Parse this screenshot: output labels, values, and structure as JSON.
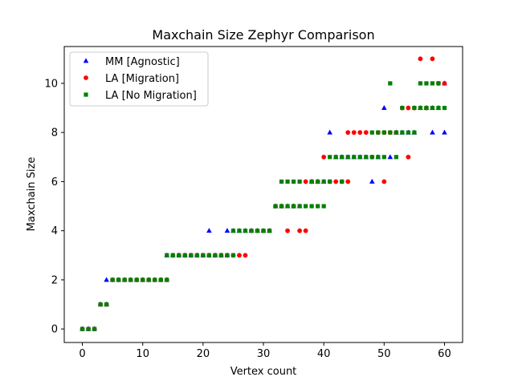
{
  "chart_data": {
    "type": "scatter",
    "title": "Maxchain Size Zephyr Comparison",
    "xlabel": "Vertex count",
    "ylabel": "Maxchain Size",
    "xlim": [
      -3,
      63
    ],
    "ylim": [
      -0.55,
      11.5
    ],
    "xticks": [
      0,
      10,
      20,
      30,
      40,
      50,
      60
    ],
    "yticks": [
      0,
      2,
      4,
      6,
      8,
      10
    ],
    "grid": false,
    "legend_position": "top-left",
    "series": [
      {
        "name": "MM [Agnostic]",
        "color": "#0000ff",
        "marker": "triangle",
        "points": [
          [
            0,
            0
          ],
          [
            1,
            0
          ],
          [
            2,
            0
          ],
          [
            3,
            1
          ],
          [
            4,
            1
          ],
          [
            4,
            2
          ],
          [
            5,
            2
          ],
          [
            6,
            2
          ],
          [
            7,
            2
          ],
          [
            8,
            2
          ],
          [
            9,
            2
          ],
          [
            10,
            2
          ],
          [
            11,
            2
          ],
          [
            12,
            2
          ],
          [
            13,
            2
          ],
          [
            14,
            2
          ],
          [
            14,
            3
          ],
          [
            15,
            3
          ],
          [
            16,
            3
          ],
          [
            17,
            3
          ],
          [
            18,
            3
          ],
          [
            19,
            3
          ],
          [
            20,
            3
          ],
          [
            21,
            3
          ],
          [
            21,
            4
          ],
          [
            22,
            3
          ],
          [
            23,
            3
          ],
          [
            24,
            3
          ],
          [
            24,
            4
          ],
          [
            25,
            4
          ],
          [
            26,
            4
          ],
          [
            27,
            4
          ],
          [
            28,
            4
          ],
          [
            29,
            4
          ],
          [
            30,
            4
          ],
          [
            31,
            4
          ],
          [
            32,
            5
          ],
          [
            33,
            5
          ],
          [
            34,
            5
          ],
          [
            35,
            5
          ],
          [
            36,
            5
          ],
          [
            38,
            6
          ],
          [
            39,
            6
          ],
          [
            40,
            6
          ],
          [
            41,
            8
          ],
          [
            42,
            7
          ],
          [
            43,
            7
          ],
          [
            44,
            7
          ],
          [
            45,
            7
          ],
          [
            46,
            7
          ],
          [
            47,
            7
          ],
          [
            48,
            6
          ],
          [
            49,
            7
          ],
          [
            50,
            9
          ],
          [
            51,
            7
          ],
          [
            52,
            8
          ],
          [
            53,
            8
          ],
          [
            54,
            8
          ],
          [
            55,
            8
          ],
          [
            56,
            9
          ],
          [
            57,
            9
          ],
          [
            58,
            8
          ],
          [
            58,
            9
          ],
          [
            59,
            9
          ],
          [
            60,
            8
          ],
          [
            60,
            10
          ]
        ]
      },
      {
        "name": "LA [Migration]",
        "color": "#ff0000",
        "marker": "circle",
        "points": [
          [
            0,
            0
          ],
          [
            1,
            0
          ],
          [
            2,
            0
          ],
          [
            3,
            1
          ],
          [
            4,
            1
          ],
          [
            5,
            2
          ],
          [
            6,
            2
          ],
          [
            7,
            2
          ],
          [
            8,
            2
          ],
          [
            9,
            2
          ],
          [
            10,
            2
          ],
          [
            11,
            2
          ],
          [
            12,
            2
          ],
          [
            13,
            2
          ],
          [
            14,
            2
          ],
          [
            15,
            3
          ],
          [
            16,
            3
          ],
          [
            17,
            3
          ],
          [
            18,
            3
          ],
          [
            19,
            3
          ],
          [
            20,
            3
          ],
          [
            21,
            3
          ],
          [
            22,
            3
          ],
          [
            23,
            3
          ],
          [
            24,
            3
          ],
          [
            25,
            3
          ],
          [
            26,
            3
          ],
          [
            27,
            3
          ],
          [
            28,
            4
          ],
          [
            29,
            4
          ],
          [
            30,
            4
          ],
          [
            31,
            4
          ],
          [
            32,
            5
          ],
          [
            33,
            5
          ],
          [
            34,
            4
          ],
          [
            35,
            5
          ],
          [
            36,
            4
          ],
          [
            37,
            4
          ],
          [
            37,
            6
          ],
          [
            38,
            6
          ],
          [
            39,
            6
          ],
          [
            40,
            7
          ],
          [
            41,
            6
          ],
          [
            42,
            6
          ],
          [
            43,
            6
          ],
          [
            44,
            6
          ],
          [
            44,
            8
          ],
          [
            45,
            8
          ],
          [
            46,
            8
          ],
          [
            47,
            8
          ],
          [
            48,
            7
          ],
          [
            49,
            8
          ],
          [
            50,
            6
          ],
          [
            50,
            8
          ],
          [
            51,
            8
          ],
          [
            52,
            8
          ],
          [
            53,
            9
          ],
          [
            54,
            7
          ],
          [
            54,
            9
          ],
          [
            55,
            9
          ],
          [
            56,
            11
          ],
          [
            57,
            9
          ],
          [
            58,
            11
          ],
          [
            59,
            10
          ],
          [
            60,
            10
          ]
        ]
      },
      {
        "name": "LA [No Migration]",
        "color": "#008000",
        "marker": "square",
        "points": [
          [
            0,
            0
          ],
          [
            1,
            0
          ],
          [
            2,
            0
          ],
          [
            3,
            1
          ],
          [
            4,
            1
          ],
          [
            5,
            2
          ],
          [
            6,
            2
          ],
          [
            7,
            2
          ],
          [
            8,
            2
          ],
          [
            9,
            2
          ],
          [
            10,
            2
          ],
          [
            11,
            2
          ],
          [
            12,
            2
          ],
          [
            13,
            2
          ],
          [
            14,
            2
          ],
          [
            14,
            3
          ],
          [
            15,
            3
          ],
          [
            16,
            3
          ],
          [
            17,
            3
          ],
          [
            18,
            3
          ],
          [
            19,
            3
          ],
          [
            20,
            3
          ],
          [
            21,
            3
          ],
          [
            22,
            3
          ],
          [
            23,
            3
          ],
          [
            24,
            3
          ],
          [
            25,
            3
          ],
          [
            25,
            4
          ],
          [
            26,
            4
          ],
          [
            27,
            4
          ],
          [
            28,
            4
          ],
          [
            29,
            4
          ],
          [
            30,
            4
          ],
          [
            31,
            4
          ],
          [
            32,
            5
          ],
          [
            33,
            5
          ],
          [
            33,
            6
          ],
          [
            34,
            5
          ],
          [
            34,
            6
          ],
          [
            35,
            5
          ],
          [
            35,
            6
          ],
          [
            36,
            5
          ],
          [
            36,
            6
          ],
          [
            37,
            5
          ],
          [
            38,
            5
          ],
          [
            38,
            6
          ],
          [
            39,
            5
          ],
          [
            39,
            6
          ],
          [
            40,
            5
          ],
          [
            40,
            6
          ],
          [
            41,
            6
          ],
          [
            41,
            7
          ],
          [
            42,
            7
          ],
          [
            43,
            6
          ],
          [
            43,
            7
          ],
          [
            44,
            7
          ],
          [
            45,
            7
          ],
          [
            46,
            7
          ],
          [
            47,
            7
          ],
          [
            48,
            7
          ],
          [
            48,
            8
          ],
          [
            49,
            7
          ],
          [
            49,
            8
          ],
          [
            50,
            7
          ],
          [
            50,
            8
          ],
          [
            51,
            8
          ],
          [
            51,
            10
          ],
          [
            52,
            7
          ],
          [
            52,
            8
          ],
          [
            53,
            8
          ],
          [
            53,
            9
          ],
          [
            54,
            8
          ],
          [
            55,
            8
          ],
          [
            55,
            9
          ],
          [
            56,
            9
          ],
          [
            56,
            10
          ],
          [
            57,
            9
          ],
          [
            57,
            10
          ],
          [
            58,
            9
          ],
          [
            58,
            10
          ],
          [
            59,
            9
          ],
          [
            59,
            10
          ],
          [
            60,
            9
          ]
        ]
      }
    ]
  }
}
